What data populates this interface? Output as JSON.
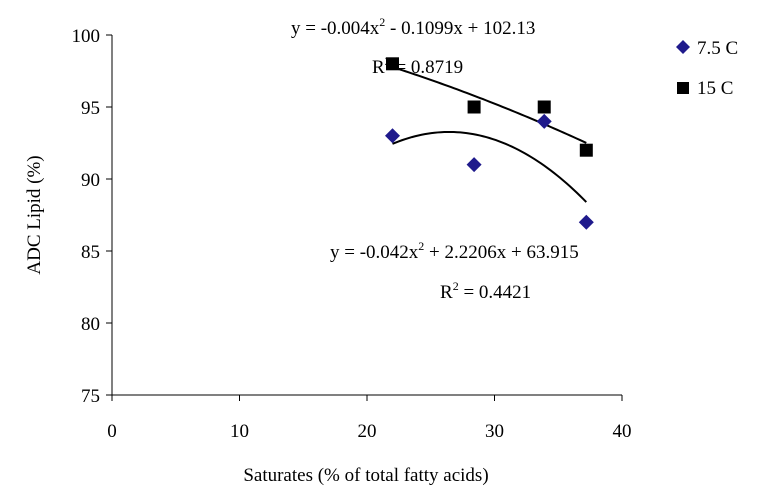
{
  "chart_data": {
    "type": "scatter",
    "xlabel": "Saturates (% of total fatty acids)",
    "ylabel": "ADC Lipid (%)",
    "xlim": [
      0,
      40
    ],
    "ylim": [
      75,
      100
    ],
    "x_ticks": [
      "0",
      "10",
      "20",
      "30",
      "40"
    ],
    "y_ticks": [
      "75",
      "80",
      "85",
      "90",
      "95",
      "100"
    ],
    "grid": false,
    "legend_position": "right",
    "series": [
      {
        "name": "7.5 C",
        "marker": "diamond",
        "color": "#1f1a8c",
        "x": [
          22.0,
          28.4,
          33.9,
          37.2
        ],
        "y": [
          93,
          91,
          94,
          87
        ],
        "trendline": {
          "type": "polynomial-2",
          "coefficients": [
            -0.042,
            2.2206,
            63.915
          ],
          "equation_prefix": "y = -0.042x",
          "equation_exp": "2",
          "equation_suffix": " + 2.2206x + 63.915",
          "r2_prefix": "R",
          "r2_exp": "2",
          "r2_suffix": " = 0.4421"
        }
      },
      {
        "name": "15 C",
        "marker": "square",
        "color": "#000000",
        "x": [
          22.0,
          28.4,
          33.9,
          37.2
        ],
        "y": [
          98,
          95,
          95,
          92
        ],
        "trendline": {
          "type": "polynomial-2",
          "coefficients": [
            -0.004,
            -0.1099,
            102.13
          ],
          "equation_prefix": "y = -0.004x",
          "equation_exp": "2",
          "equation_suffix": " - 0.1099x + 102.13",
          "r2_prefix": "R",
          "r2_exp": "2",
          "r2_suffix": " = 0.8719"
        }
      }
    ]
  }
}
